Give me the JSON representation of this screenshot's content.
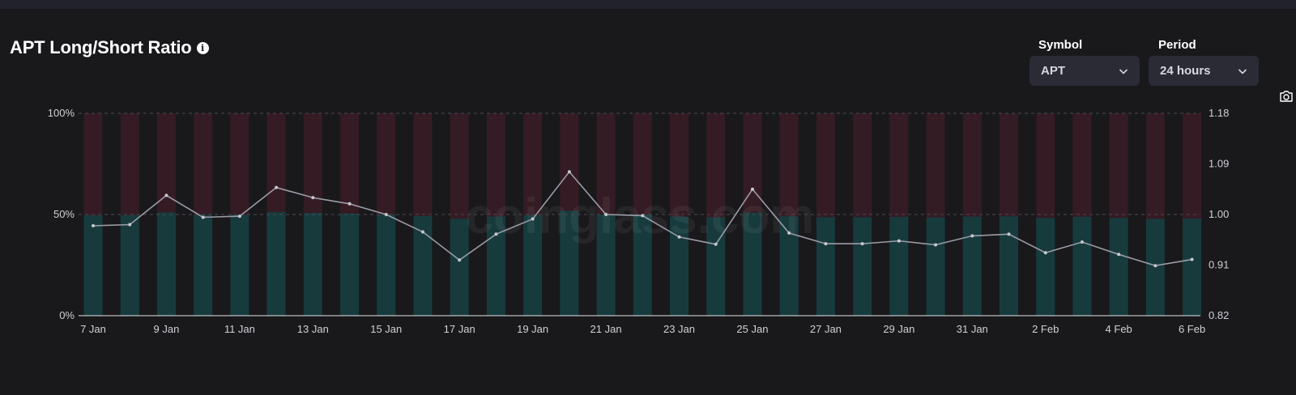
{
  "header": {
    "title": "APT Long/Short Ratio",
    "info_icon": "info-icon",
    "camera_icon": "camera-icon"
  },
  "controls": {
    "symbol_label": "Symbol",
    "symbol_value": "APT",
    "period_label": "Period",
    "period_value": "24 hours"
  },
  "watermark": "coinglass.com",
  "colors": {
    "long": "#173b3d",
    "short": "#351b24",
    "ratio_line": "#9a9ba6",
    "background": "#19191c"
  },
  "chart_data": {
    "type": "bar",
    "stacked": true,
    "categories": [
      "7 Jan",
      "8 Jan",
      "9 Jan",
      "10 Jan",
      "11 Jan",
      "12 Jan",
      "13 Jan",
      "14 Jan",
      "15 Jan",
      "16 Jan",
      "17 Jan",
      "18 Jan",
      "19 Jan",
      "20 Jan",
      "21 Jan",
      "22 Jan",
      "23 Jan",
      "24 Jan",
      "25 Jan",
      "26 Jan",
      "27 Jan",
      "28 Jan",
      "29 Jan",
      "30 Jan",
      "31 Jan",
      "1 Feb",
      "2 Feb",
      "3 Feb",
      "4 Feb",
      "5 Feb",
      "6 Feb"
    ],
    "x_tick_labels": [
      "7 Jan",
      "9 Jan",
      "11 Jan",
      "13 Jan",
      "15 Jan",
      "17 Jan",
      "19 Jan",
      "21 Jan",
      "23 Jan",
      "25 Jan",
      "27 Jan",
      "29 Jan",
      "31 Jan",
      "2 Feb",
      "4 Feb",
      "6 Feb"
    ],
    "series": [
      {
        "values": [
          49.6,
          49.7,
          51.0,
          49.8,
          49.9,
          51.2,
          50.8,
          50.5,
          50.0,
          49.2,
          47.9,
          49.0,
          49.6,
          51.8,
          50.0,
          50.0,
          49.0,
          48.6,
          51.0,
          49.1,
          48.7,
          48.7,
          48.8,
          48.6,
          49.0,
          49.1,
          48.3,
          48.9,
          48.3,
          47.8,
          48.0
        ]
      },
      {
        "values": [
          50.4,
          50.3,
          49.0,
          50.2,
          50.1,
          48.8,
          49.2,
          49.5,
          50.0,
          50.8,
          52.1,
          51.0,
          50.4,
          48.2,
          50.0,
          50.0,
          51.0,
          51.4,
          49.0,
          50.9,
          51.3,
          51.3,
          51.2,
          51.4,
          51.0,
          50.9,
          51.7,
          51.1,
          51.7,
          52.2,
          52.0
        ]
      },
      {
        "values": [
          0.98,
          0.982,
          1.034,
          0.995,
          0.997,
          1.048,
          1.03,
          1.019,
          1.0,
          0.969,
          0.919,
          0.965,
          0.992,
          1.076,
          1.0,
          0.998,
          0.96,
          0.947,
          1.045,
          0.967,
          0.948,
          0.948,
          0.953,
          0.946,
          0.962,
          0.965,
          0.932,
          0.951,
          0.929,
          0.909,
          0.92
        ]
      }
    ],
    "left_axis": {
      "ticks": [
        "0%",
        "50%",
        "100%"
      ],
      "ylim": [
        0,
        100
      ]
    },
    "right_axis": {
      "ticks": [
        "0.82",
        "0.91",
        "1.00",
        "1.09",
        "1.18"
      ],
      "ylim": [
        0.82,
        1.18
      ]
    }
  }
}
